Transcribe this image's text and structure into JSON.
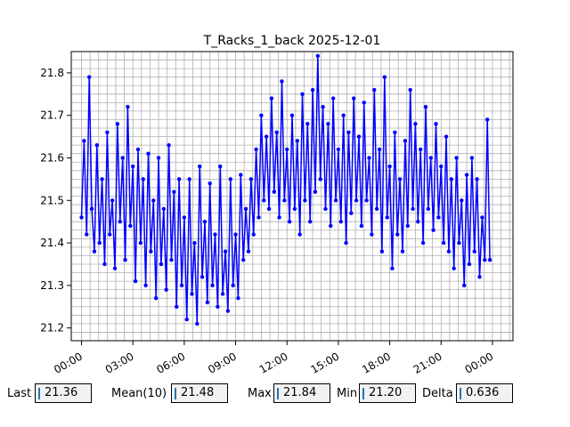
{
  "chart_data": {
    "type": "line",
    "title": "T_Racks_1_back 2025-12-01",
    "xlabel": "",
    "ylabel": "",
    "xlim": [
      -0.6,
      25.2
    ],
    "ylim": [
      21.17,
      21.85
    ],
    "x_ticks": [
      {
        "value": 0,
        "label": "00:00"
      },
      {
        "value": 3,
        "label": "03:00"
      },
      {
        "value": 6,
        "label": "06:00"
      },
      {
        "value": 9,
        "label": "09:00"
      },
      {
        "value": 12,
        "label": "12:00"
      },
      {
        "value": 15,
        "label": "15:00"
      },
      {
        "value": 18,
        "label": "18:00"
      },
      {
        "value": 21,
        "label": "21:00"
      },
      {
        "value": 24,
        "label": "00:00"
      }
    ],
    "y_ticks": [
      {
        "value": 21.2,
        "label": "21.2"
      },
      {
        "value": 21.3,
        "label": "21.3"
      },
      {
        "value": 21.4,
        "label": "21.4"
      },
      {
        "value": 21.5,
        "label": "21.5"
      },
      {
        "value": 21.6,
        "label": "21.6"
      },
      {
        "value": 21.7,
        "label": "21.7"
      },
      {
        "value": 21.8,
        "label": "21.8"
      }
    ],
    "grid": true,
    "line_color": "#0000ff",
    "series_points": [
      [
        0.0,
        21.46
      ],
      [
        0.15,
        21.64
      ],
      [
        0.3,
        21.42
      ],
      [
        0.45,
        21.79
      ],
      [
        0.6,
        21.48
      ],
      [
        0.75,
        21.38
      ],
      [
        0.9,
        21.63
      ],
      [
        1.05,
        21.4
      ],
      [
        1.2,
        21.55
      ],
      [
        1.35,
        21.35
      ],
      [
        1.5,
        21.66
      ],
      [
        1.65,
        21.42
      ],
      [
        1.8,
        21.5
      ],
      [
        1.95,
        21.34
      ],
      [
        2.1,
        21.68
      ],
      [
        2.25,
        21.45
      ],
      [
        2.4,
        21.6
      ],
      [
        2.55,
        21.36
      ],
      [
        2.7,
        21.72
      ],
      [
        2.85,
        21.44
      ],
      [
        3.0,
        21.58
      ],
      [
        3.15,
        21.31
      ],
      [
        3.3,
        21.62
      ],
      [
        3.45,
        21.4
      ],
      [
        3.6,
        21.55
      ],
      [
        3.75,
        21.3
      ],
      [
        3.9,
        21.61
      ],
      [
        4.05,
        21.38
      ],
      [
        4.2,
        21.5
      ],
      [
        4.35,
        21.27
      ],
      [
        4.5,
        21.6
      ],
      [
        4.65,
        21.35
      ],
      [
        4.8,
        21.48
      ],
      [
        4.95,
        21.29
      ],
      [
        5.1,
        21.63
      ],
      [
        5.25,
        21.36
      ],
      [
        5.4,
        21.52
      ],
      [
        5.55,
        21.25
      ],
      [
        5.7,
        21.55
      ],
      [
        5.85,
        21.3
      ],
      [
        6.0,
        21.46
      ],
      [
        6.15,
        21.22
      ],
      [
        6.3,
        21.55
      ],
      [
        6.45,
        21.28
      ],
      [
        6.6,
        21.4
      ],
      [
        6.75,
        21.21
      ],
      [
        6.9,
        21.58
      ],
      [
        7.05,
        21.32
      ],
      [
        7.2,
        21.45
      ],
      [
        7.35,
        21.26
      ],
      [
        7.5,
        21.54
      ],
      [
        7.65,
        21.3
      ],
      [
        7.8,
        21.42
      ],
      [
        7.95,
        21.25
      ],
      [
        8.1,
        21.58
      ],
      [
        8.25,
        21.28
      ],
      [
        8.4,
        21.38
      ],
      [
        8.55,
        21.24
      ],
      [
        8.7,
        21.55
      ],
      [
        8.85,
        21.3
      ],
      [
        9.0,
        21.42
      ],
      [
        9.15,
        21.27
      ],
      [
        9.3,
        21.56
      ],
      [
        9.45,
        21.36
      ],
      [
        9.6,
        21.48
      ],
      [
        9.75,
        21.38
      ],
      [
        9.9,
        21.55
      ],
      [
        10.05,
        21.42
      ],
      [
        10.2,
        21.62
      ],
      [
        10.35,
        21.46
      ],
      [
        10.5,
        21.7
      ],
      [
        10.65,
        21.5
      ],
      [
        10.8,
        21.65
      ],
      [
        10.95,
        21.48
      ],
      [
        11.1,
        21.74
      ],
      [
        11.25,
        21.52
      ],
      [
        11.4,
        21.66
      ],
      [
        11.55,
        21.46
      ],
      [
        11.7,
        21.78
      ],
      [
        11.85,
        21.5
      ],
      [
        12.0,
        21.62
      ],
      [
        12.15,
        21.45
      ],
      [
        12.3,
        21.7
      ],
      [
        12.45,
        21.48
      ],
      [
        12.6,
        21.64
      ],
      [
        12.75,
        21.42
      ],
      [
        12.9,
        21.75
      ],
      [
        13.05,
        21.5
      ],
      [
        13.2,
        21.68
      ],
      [
        13.35,
        21.45
      ],
      [
        13.5,
        21.76
      ],
      [
        13.65,
        21.52
      ],
      [
        13.8,
        21.84
      ],
      [
        13.95,
        21.55
      ],
      [
        14.1,
        21.72
      ],
      [
        14.25,
        21.48
      ],
      [
        14.4,
        21.68
      ],
      [
        14.55,
        21.44
      ],
      [
        14.7,
        21.74
      ],
      [
        14.85,
        21.5
      ],
      [
        15.0,
        21.62
      ],
      [
        15.15,
        21.45
      ],
      [
        15.3,
        21.7
      ],
      [
        15.45,
        21.4
      ],
      [
        15.6,
        21.66
      ],
      [
        15.75,
        21.47
      ],
      [
        15.9,
        21.74
      ],
      [
        16.05,
        21.5
      ],
      [
        16.2,
        21.65
      ],
      [
        16.35,
        21.44
      ],
      [
        16.5,
        21.73
      ],
      [
        16.65,
        21.5
      ],
      [
        16.8,
        21.6
      ],
      [
        16.95,
        21.42
      ],
      [
        17.1,
        21.76
      ],
      [
        17.25,
        21.48
      ],
      [
        17.4,
        21.62
      ],
      [
        17.55,
        21.38
      ],
      [
        17.7,
        21.79
      ],
      [
        17.85,
        21.46
      ],
      [
        18.0,
        21.58
      ],
      [
        18.15,
        21.34
      ],
      [
        18.3,
        21.66
      ],
      [
        18.45,
        21.42
      ],
      [
        18.6,
        21.55
      ],
      [
        18.75,
        21.38
      ],
      [
        18.9,
        21.64
      ],
      [
        19.05,
        21.44
      ],
      [
        19.2,
        21.76
      ],
      [
        19.35,
        21.48
      ],
      [
        19.5,
        21.68
      ],
      [
        19.65,
        21.45
      ],
      [
        19.8,
        21.62
      ],
      [
        19.95,
        21.4
      ],
      [
        20.1,
        21.72
      ],
      [
        20.25,
        21.48
      ],
      [
        20.4,
        21.6
      ],
      [
        20.55,
        21.43
      ],
      [
        20.7,
        21.68
      ],
      [
        20.85,
        21.46
      ],
      [
        21.0,
        21.58
      ],
      [
        21.15,
        21.4
      ],
      [
        21.3,
        21.65
      ],
      [
        21.45,
        21.38
      ],
      [
        21.6,
        21.55
      ],
      [
        21.75,
        21.34
      ],
      [
        21.9,
        21.6
      ],
      [
        22.05,
        21.4
      ],
      [
        22.2,
        21.5
      ],
      [
        22.35,
        21.3
      ],
      [
        22.5,
        21.56
      ],
      [
        22.65,
        21.35
      ],
      [
        22.8,
        21.6
      ],
      [
        22.95,
        21.38
      ],
      [
        23.1,
        21.55
      ],
      [
        23.25,
        21.32
      ],
      [
        23.4,
        21.46
      ],
      [
        23.55,
        21.36
      ],
      [
        23.7,
        21.69
      ],
      [
        23.85,
        21.36
      ]
    ]
  },
  "stats": {
    "last_label": "Last",
    "last_value": "21.36",
    "mean_label": "Mean(10)",
    "mean_value": "21.48",
    "max_label": "Max",
    "max_value": "21.84",
    "min_label": "Min",
    "min_value": "21.20",
    "delta_label": "Delta",
    "delta_value": "0.636"
  }
}
